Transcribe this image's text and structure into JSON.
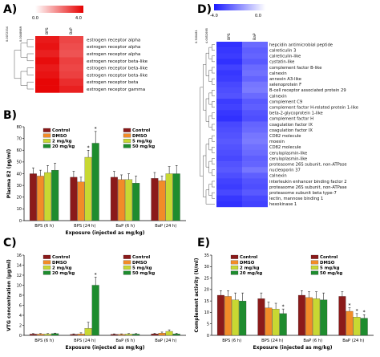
{
  "panels": {
    "A": {
      "letter": "A)",
      "scale_min": "0.0",
      "scale_max": "4.0",
      "tree_scale": "0.0072334",
      "tree_scale_low": "0.0048989",
      "col_labels": [
        "BPS",
        "BaP"
      ]
    },
    "B": {
      "letter": "B)"
    },
    "C": {
      "letter": "C)"
    },
    "D": {
      "letter": "D)",
      "scale_min": "-4.0",
      "scale_max": "0.0",
      "tree_scale": "0.300481",
      "tree_scale_low": "4.0052695",
      "col_labels": [
        "BPS",
        "BaP"
      ]
    },
    "E": {
      "letter": "E)"
    }
  },
  "chart_data": [
    {
      "id": "A",
      "type": "heatmap",
      "color_scale": {
        "min": 0.0,
        "max": 4.0,
        "low_color": "#ffffff",
        "high_color": "#e60000"
      },
      "columns": [
        "BPS",
        "BaP"
      ],
      "rows": [
        "estrogen receptor alpha",
        "estrogen receptor alpha",
        "estrogen receptor alpha",
        "estrogen receptor beta-like",
        "estrogen receptor beta-like",
        "estrogen receptor beta-like",
        "estrogen receptor beta",
        "estrogen receptor gamma"
      ],
      "values": [
        [
          3.6,
          2.9
        ],
        [
          3.7,
          2.8
        ],
        [
          3.5,
          2.7
        ],
        [
          3.8,
          3.0
        ],
        [
          3.6,
          2.9
        ],
        [
          3.7,
          3.0
        ],
        [
          3.9,
          3.3
        ],
        [
          3.9,
          3.5
        ]
      ]
    },
    {
      "id": "B",
      "type": "bar",
      "ylabel": "Plasma E2 (pg/ml)",
      "xlabel": "Exposure (injected as mg/kg)",
      "ylim": [
        0,
        80
      ],
      "yticks": [
        0,
        10,
        20,
        30,
        40,
        50,
        60,
        70,
        80
      ],
      "categories": [
        "BPS (6 h)",
        "BPS (24 h)",
        "BaP (6 h)",
        "BaP (24 h)"
      ],
      "legend_left": [
        "Control",
        "DMSO",
        "2 mg/kg",
        "20 mg/kg"
      ],
      "legend_right": [
        "Control",
        "DMSO",
        "5 mg/kg",
        "50 mg/kg"
      ],
      "series": [
        {
          "color": "#8b1a1a",
          "values": [
            40,
            37,
            37,
            36
          ],
          "errors": [
            5,
            5,
            5,
            5
          ]
        },
        {
          "color": "#f28c28",
          "values": [
            38,
            33,
            35,
            34
          ],
          "errors": [
            5,
            4,
            4,
            4
          ]
        },
        {
          "color": "#c8d832",
          "values": [
            41,
            54,
            35,
            40
          ],
          "errors": [
            6,
            6,
            5,
            6
          ]
        },
        {
          "color": "#1e8c2e",
          "values": [
            43,
            66,
            32,
            40
          ],
          "errors": [
            6,
            10,
            6,
            7
          ]
        }
      ],
      "annotations": [
        {
          "category": "BPS (24 h)",
          "series": 2,
          "text": "*"
        },
        {
          "category": "BPS (24 h)",
          "series": 3,
          "text": "*"
        }
      ]
    },
    {
      "id": "C",
      "type": "bar",
      "ylabel": "VTG concentration (μg/ml)",
      "xlabel": "Exposure (injected as mg/kg)",
      "ylim": [
        0,
        16
      ],
      "yticks": [
        0,
        2,
        4,
        6,
        8,
        10,
        12,
        14,
        16
      ],
      "categories": [
        "BPS (6 h)",
        "BPS (24 h)",
        "BaP (6 h)",
        "BaP (24 h)"
      ],
      "legend_left": [
        "Control",
        "DMSO",
        "2 mg/kg",
        "20 mg/kg"
      ],
      "legend_right": [
        "Control",
        "DMSO",
        "5 mg/kg",
        "50 mg/kg"
      ],
      "series": [
        {
          "color": "#8b1a1a",
          "values": [
            0.25,
            0.2,
            0.2,
            0.3
          ],
          "errors": [
            0.1,
            0.1,
            0.1,
            0.1
          ]
        },
        {
          "color": "#f28c28",
          "values": [
            0.25,
            0.3,
            0.2,
            0.45
          ],
          "errors": [
            0.1,
            0.2,
            0.1,
            0.2
          ]
        },
        {
          "color": "#c8d832",
          "values": [
            0.25,
            1.4,
            0.25,
            0.8
          ],
          "errors": [
            0.1,
            1.2,
            0.1,
            0.3
          ]
        },
        {
          "color": "#1e8c2e",
          "values": [
            0.35,
            10.0,
            0.25,
            0.3
          ],
          "errors": [
            0.1,
            1.6,
            0.1,
            0.1
          ]
        }
      ],
      "annotations": [
        {
          "category": "BPS (24 h)",
          "series": 3,
          "text": "*"
        }
      ]
    },
    {
      "id": "D",
      "type": "heatmap",
      "color_scale": {
        "min": -4.0,
        "max": 0.0,
        "low_color": "#1a1aff",
        "high_color": "#ffffff"
      },
      "columns": [
        "BPS",
        "BaP"
      ],
      "rows": [
        "hepcidin antimicrobial peptide",
        "calreticulin 3",
        "calreticulin-like",
        "cystatin-like",
        "complement factor B-like",
        "calnexin",
        "annexin A3-like",
        "selenoprotein F",
        "B-cell receptor associated protein 29",
        "calnexin",
        "complement C9",
        "complement factor H-related protein 1-like",
        "beta-2-glycoprotein 1-like",
        "complement factor H",
        "coagulation factor IX",
        "coagulation factor IX",
        "CD82 molecule",
        "moesin",
        "CD82 molecule",
        "ceruloplasmin-like",
        "ceruloplasmin-like",
        "proteasome 26S subunit, non-ATPase",
        "nucleoporin 37",
        "calnexin",
        "interleukin enhancer binding factor 2",
        "proteasome 26S subunit, non-ATPase",
        "proteasome subunit beta type-7",
        "lectin, mannose binding 1",
        "hexokinase 1"
      ],
      "values": [
        [
          -3.6,
          -2.6
        ],
        [
          -3.5,
          -2.8
        ],
        [
          -3.4,
          -2.7
        ],
        [
          -3.6,
          -2.9
        ],
        [
          -3.3,
          -2.6
        ],
        [
          -3.5,
          -2.5
        ],
        [
          -3.4,
          -2.7
        ],
        [
          -3.2,
          -2.4
        ],
        [
          -3.1,
          -2.3
        ],
        [
          -3.0,
          -2.6
        ],
        [
          -3.4,
          -2.9
        ],
        [
          -3.3,
          -2.8
        ],
        [
          -3.5,
          -3.0
        ],
        [
          -3.6,
          -3.1
        ],
        [
          -3.2,
          -2.7
        ],
        [
          -3.1,
          -2.6
        ],
        [
          -3.0,
          -2.4
        ],
        [
          -2.9,
          -2.3
        ],
        [
          -3.0,
          -2.5
        ],
        [
          -3.1,
          -2.6
        ],
        [
          -3.2,
          -2.8
        ],
        [
          -3.0,
          -2.7
        ],
        [
          -2.9,
          -2.4
        ],
        [
          -3.1,
          -2.8
        ],
        [
          -3.3,
          -3.0
        ],
        [
          -3.4,
          -3.1
        ],
        [
          -3.2,
          -2.9
        ],
        [
          -3.5,
          -3.2
        ],
        [
          -3.6,
          -3.3
        ]
      ]
    },
    {
      "id": "E",
      "type": "bar",
      "ylabel": "Complement activity (U/ml)",
      "xlabel": "Exposure (injected as mg/kg)",
      "ylim": [
        0,
        35
      ],
      "yticks": [
        0,
        5,
        10,
        15,
        20,
        25,
        30,
        35
      ],
      "categories": [
        "BPS (6 h)",
        "BPS (24 h)",
        "BaP (6 h)",
        "BaP (24 h)"
      ],
      "legend_left": [
        "Control",
        "DMSO",
        "2 mg/kg",
        "20 mg/kg"
      ],
      "legend_right": [
        "Control",
        "DMSO",
        "5 mg/kg",
        "50 mg/kg"
      ],
      "series": [
        {
          "color": "#8b1a1a",
          "values": [
            17.5,
            16,
            17.5,
            17
          ],
          "errors": [
            2,
            2.5,
            2,
            2
          ]
        },
        {
          "color": "#f28c28",
          "values": [
            17,
            12,
            16.5,
            10.5
          ],
          "errors": [
            2.5,
            2.5,
            2.5,
            1.5
          ]
        },
        {
          "color": "#c8d832",
          "values": [
            15.5,
            11.5,
            16,
            8
          ],
          "errors": [
            3,
            2.5,
            3,
            1.5
          ]
        },
        {
          "color": "#1e8c2e",
          "values": [
            15,
            9.5,
            15.5,
            7.5
          ],
          "errors": [
            3.5,
            2,
            3,
            1.5
          ]
        }
      ],
      "annotations": [
        {
          "category": "BPS (24 h)",
          "series": 3,
          "text": "*"
        },
        {
          "category": "BaP (24 h)",
          "series": 1,
          "text": "*"
        },
        {
          "category": "BaP (24 h)",
          "series": 2,
          "text": "*"
        },
        {
          "category": "BaP (24 h)",
          "series": 3,
          "text": "*"
        }
      ]
    }
  ]
}
